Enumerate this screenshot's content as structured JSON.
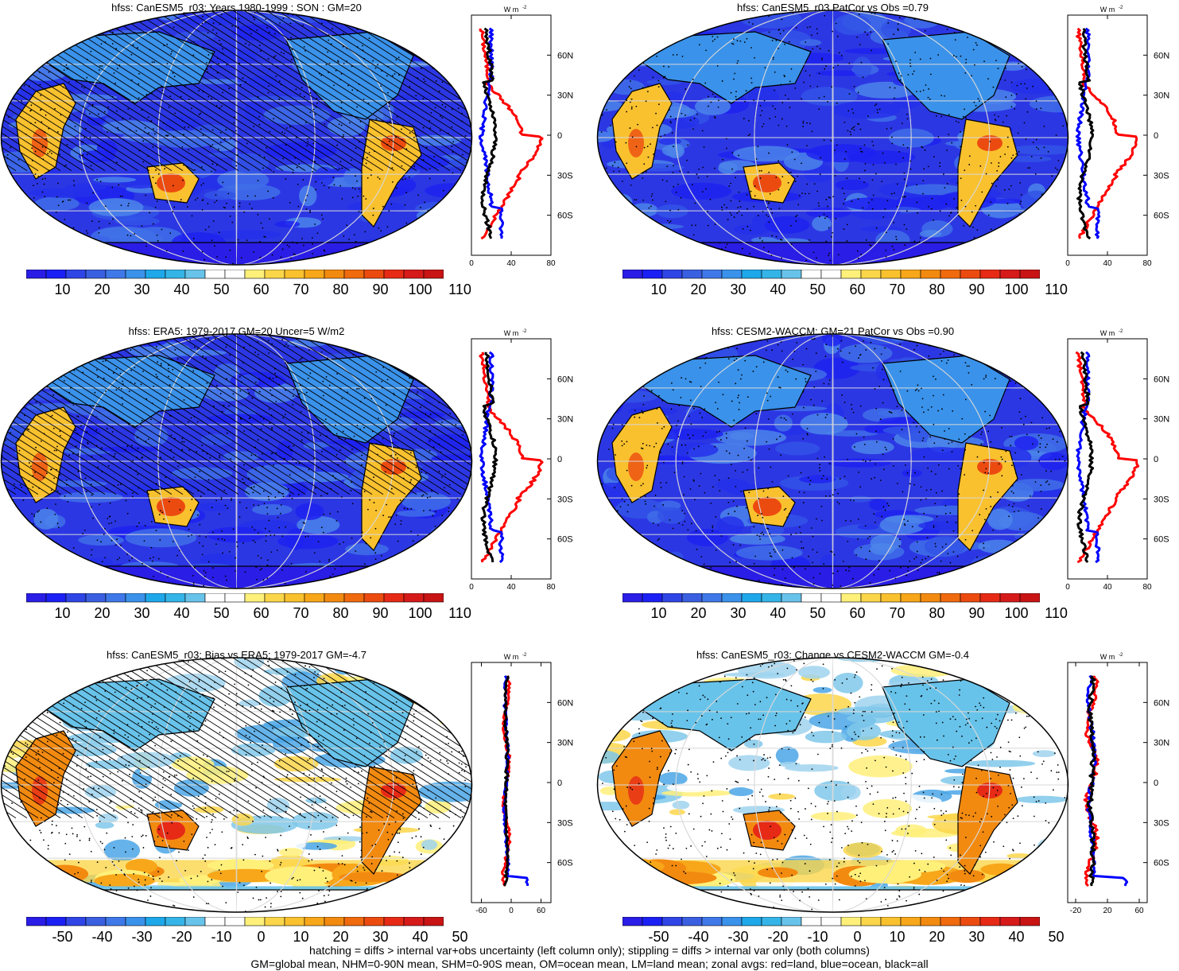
{
  "panels": [
    {
      "id": "p1",
      "title": "hfss: CanESM5_r03: Years 1980-1999 : SON : GM=20",
      "kind": "abs",
      "hatch": true,
      "zonal_xticks": [
        "0",
        "40",
        "80"
      ],
      "zonal_xrange": [
        0,
        80
      ],
      "zonal_unit": "W m-2"
    },
    {
      "id": "p2",
      "title": "hfss: CanESM5_r03 PatCor vs Obs =0.79",
      "kind": "abs",
      "hatch": false,
      "zonal_xticks": [
        "0",
        "40",
        "80"
      ],
      "zonal_xrange": [
        0,
        80
      ],
      "zonal_unit": "W m-2"
    },
    {
      "id": "p3",
      "title": "hfss: ERA5: 1979-2017 GM=20 Uncer=5 W/m2",
      "kind": "abs",
      "hatch": true,
      "zonal_xticks": [
        "0",
        "40",
        "80"
      ],
      "zonal_xrange": [
        0,
        80
      ],
      "zonal_unit": "W m-2"
    },
    {
      "id": "p4",
      "title": "hfss: CESM2-WACCM: GM=21 PatCor vs Obs =0.90",
      "kind": "abs",
      "hatch": false,
      "zonal_xticks": [
        "0",
        "40",
        "80"
      ],
      "zonal_xrange": [
        0,
        80
      ],
      "zonal_unit": "W m-2"
    },
    {
      "id": "p5",
      "title": "hfss: CanESM5_r03: Bias vs ERA5: 1979-2017  GM=-4.7",
      "kind": "diff",
      "hatch": true,
      "zonal_xticks": [
        "-60",
        "0",
        "60"
      ],
      "zonal_xrange": [
        -80,
        80
      ],
      "zonal_unit": "W m-2"
    },
    {
      "id": "p6",
      "title": "hfss: CanESM5_r03: Change vs CESM2-WACCM GM=-0.4",
      "kind": "diff",
      "hatch": false,
      "zonal_xticks": [
        "-20",
        "20",
        "60"
      ],
      "zonal_xrange": [
        -30,
        70
      ],
      "zonal_unit": "W m-2"
    }
  ],
  "lat_ticks": [
    "60N",
    "30N",
    "0",
    "30S",
    "60S"
  ],
  "colorbars": {
    "abs": {
      "labels": [
        "10",
        "20",
        "30",
        "40",
        "50",
        "60",
        "70",
        "80",
        "90",
        "100",
        "110"
      ],
      "colors": [
        "#2a1de6",
        "#1b20f4",
        "#2f45e6",
        "#3a5fe0",
        "#3f78e8",
        "#3a92ea",
        "#1ea8ea",
        "#35b4e8",
        "#68c3ea",
        "#ffffff",
        "#ffffff",
        "#fff07a",
        "#fbd64a",
        "#f9c12e",
        "#f7a719",
        "#f38a10",
        "#f06a0e",
        "#ec4b10",
        "#e62a16",
        "#d61a1a",
        "#c81414"
      ]
    },
    "diff": {
      "labels": [
        "-50",
        "-40",
        "-30",
        "-20",
        "-10",
        "0",
        "10",
        "20",
        "30",
        "40",
        "50"
      ],
      "colors": [
        "#2a1de6",
        "#1b20f4",
        "#2f45e6",
        "#3a5fe0",
        "#3f78e8",
        "#3a92ea",
        "#1ea8ea",
        "#35b4e8",
        "#68c3ea",
        "#ffffff",
        "#ffffff",
        "#fff07a",
        "#fbd64a",
        "#f9c12e",
        "#f7a719",
        "#f38a10",
        "#f06a0e",
        "#ec4b10",
        "#e62a16",
        "#d61a1a",
        "#c81414"
      ]
    }
  },
  "footnote": {
    "line1": "hatching = diffs > internal var+obs uncertainty (left column only); stippling = diffs > internal var only (both columns)",
    "line2": "GM=global mean, NHM=0-90N mean, SHM=0-90S mean, OM=ocean mean, LM=land mean; zonal avgs: red=land, blue=ocean, black=all"
  },
  "legend_colors": {
    "land": "#ff0000",
    "ocean": "#0000ff",
    "all": "#000000"
  }
}
